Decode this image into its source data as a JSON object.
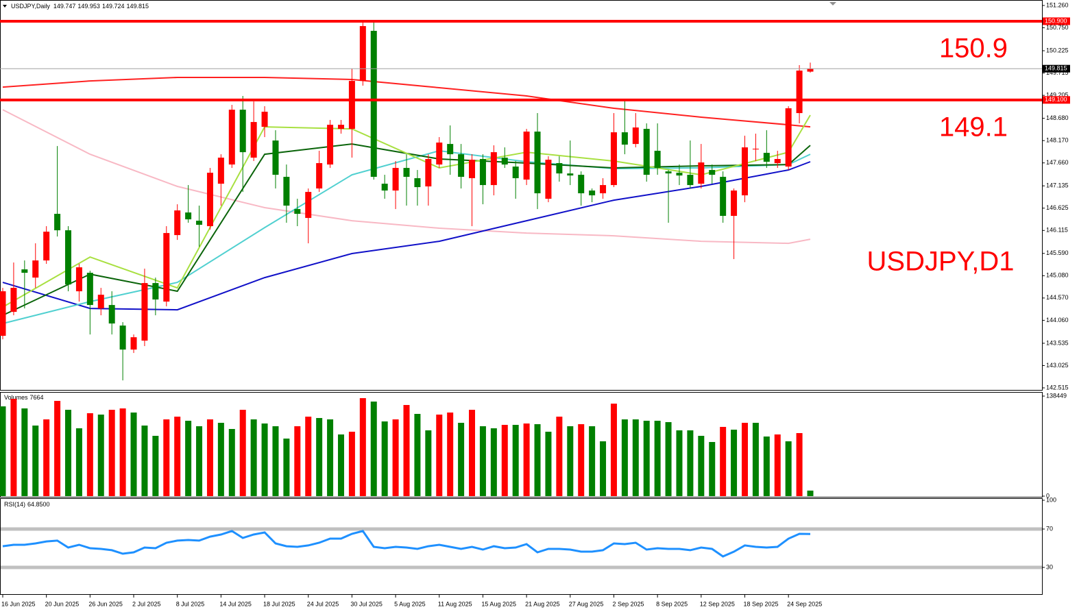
{
  "chart_data": [
    {
      "type": "candlestick",
      "title": "USDJPY,Daily",
      "categories": [
        "16 Jun 2025",
        null,
        null,
        null,
        "20 Jun 2025",
        null,
        null,
        null,
        "26 Jun 2025",
        null,
        null,
        null,
        "2 Jul 2025",
        null,
        null,
        null,
        "8 Jul 2025",
        null,
        null,
        null,
        "14 Jul 2025",
        null,
        null,
        null,
        "18 Jul 2025",
        null,
        null,
        null,
        "24 Jul 2025",
        null,
        null,
        null,
        "30 Jul 2025",
        null,
        null,
        null,
        "5 Aug 2025",
        null,
        null,
        null,
        "11 Aug 2025",
        null,
        null,
        null,
        "15 Aug 2025",
        null,
        null,
        null,
        "21 Aug 2025",
        null,
        null,
        null,
        "27 Aug 2025",
        null,
        null,
        null,
        "2 Sep 2025",
        null,
        null,
        null,
        "8 Sep 2025",
        null,
        null,
        null,
        "12 Sep 2025",
        null,
        null,
        null,
        "18 Sep 2025",
        null,
        null,
        null,
        "24 Sep 2025",
        null,
        null
      ],
      "open": [
        143.705,
        144.253,
        145.225,
        145.037,
        145.429,
        146.495,
        146.119,
        144.724,
        145.147,
        144.332,
        144.41,
        143.94,
        143.391,
        143.595,
        144.912,
        144.488,
        146.009,
        146.526,
        146.338,
        146.213,
        147.184,
        147.623,
        148.877,
        147.78,
        148.485,
        148.172,
        147.341,
        146.604,
        146.401,
        147.075,
        147.623,
        148.438,
        148.438,
        149.535,
        150.68,
        147.184,
        147.028,
        147.545,
        147.31,
        147.122,
        147.623,
        148.093,
        147.858,
        147.31,
        147.749,
        147.153,
        147.78,
        147.576,
        147.278,
        148.376,
        146.84,
        147.655,
        147.419,
        147.388,
        147.028,
        146.965,
        147.153,
        148.36,
        148.093,
        148.438,
        147.937,
        147.466,
        147.435,
        147.388,
        147.184,
        147.498,
        147.341,
        146.448,
        146.918,
        147.968,
        147.89,
        147.655,
        147.576,
        148.799,
        149.747
      ],
      "high": [
        144.802,
        145.382,
        145.429,
        145.821,
        146.213,
        148.046,
        146.213,
        145.351,
        145.194,
        144.802,
        144.724,
        144.018,
        143.736,
        145.241,
        145.037,
        146.213,
        146.714,
        147.153,
        146.683,
        147.545,
        147.858,
        148.987,
        149.191,
        149.065,
        148.956,
        148.407,
        147.623,
        146.84,
        147.075,
        147.937,
        148.642,
        148.642,
        149.818,
        150.868,
        150.868,
        147.388,
        147.702,
        147.858,
        147.498,
        147.858,
        148.25,
        148.517,
        148.093,
        147.858,
        147.858,
        148.062,
        148.015,
        147.702,
        148.438,
        148.799,
        147.811,
        147.811,
        148.172,
        147.466,
        147.075,
        147.31,
        148.799,
        149.112,
        148.799,
        148.564,
        148.564,
        147.498,
        147.623,
        148.172,
        148.093,
        147.623,
        147.466,
        147.075,
        148.282,
        148.329,
        148.407,
        147.937,
        148.956,
        149.896,
        149.953
      ],
      "low": [
        143.626,
        144.175,
        144.332,
        144.802,
        145.351,
        145.977,
        144.724,
        144.488,
        143.736,
        144.175,
        143.736,
        142.686,
        143.313,
        143.47,
        144.175,
        144.379,
        145.899,
        146.291,
        145.742,
        146.134,
        146.683,
        147.545,
        146.996,
        147.702,
        148.25,
        147.075,
        146.291,
        146.213,
        145.821,
        146.996,
        147.545,
        148.329,
        147.78,
        149.426,
        147.278,
        146.84,
        146.604,
        146.683,
        146.683,
        146.683,
        147.545,
        147.388,
        147.075,
        146.213,
        146.714,
        146.918,
        147.545,
        146.84,
        147.153,
        146.604,
        146.761,
        147.231,
        147.153,
        146.683,
        146.761,
        146.84,
        147.106,
        147.858,
        148.015,
        147.231,
        147.388,
        146.291,
        147.153,
        147.075,
        147.075,
        147.184,
        146.291,
        145.46,
        146.761,
        147.702,
        147.545,
        147.545,
        147.498,
        148.564,
        149.724
      ],
      "close": [
        144.724,
        144.802,
        145.147,
        145.429,
        146.087,
        146.119,
        144.88,
        145.272,
        144.41,
        144.645,
        143.987,
        143.391,
        143.673,
        144.912,
        144.536,
        146.056,
        146.573,
        146.369,
        146.244,
        147.435,
        147.78,
        148.877,
        147.905,
        148.595,
        148.83,
        147.388,
        146.683,
        146.495,
        146.996,
        147.655,
        148.532,
        148.532,
        149.535,
        150.789,
        147.341,
        147.028,
        147.545,
        147.341,
        147.106,
        147.749,
        148.125,
        147.858,
        147.341,
        147.733,
        147.153,
        147.905,
        147.623,
        147.31,
        148.376,
        146.965,
        147.733,
        147.419,
        147.372,
        146.965,
        146.918,
        147.153,
        148.36,
        148.078,
        148.47,
        147.388,
        147.545,
        147.419,
        147.372,
        147.153,
        147.67,
        147.388,
        146.448,
        147.028,
        148.015,
        147.984,
        147.686,
        147.749,
        148.909,
        149.771,
        149.815
      ],
      "up_color": "#ff0000",
      "down_color": "#008000",
      "ylim": [
        142.515,
        151.26
      ],
      "yticks": [
        {
          "value": 151.26,
          "label": "151.260"
        },
        {
          "value": 150.75,
          "label": "150.750"
        },
        150.225,
        149.715,
        149.205,
        {
          "value": 148.68,
          "label": "148.680"
        },
        {
          "value": 148.17,
          "label": "148.170"
        },
        {
          "value": 147.66,
          "label": "147.660"
        },
        147.135,
        146.625,
        146.115,
        {
          "value": 145.59,
          "label": "145.590"
        },
        {
          "value": 145.08,
          "label": "145.080"
        },
        {
          "value": 144.57,
          "label": "144.570"
        },
        {
          "value": 144.06,
          "label": "144.060"
        },
        143.535,
        143.025,
        142.515
      ],
      "lines": [
        {
          "color": "#ff2020",
          "x": [
            0,
            8,
            16,
            24,
            32,
            40,
            48,
            56,
            64,
            72,
            74
          ],
          "values": [
            149.394,
            149.535,
            149.614,
            149.614,
            149.567,
            149.379,
            149.191,
            148.909,
            148.705,
            148.532,
            148.485
          ]
        },
        {
          "color": "#f8b8c4",
          "x": [
            0,
            8,
            16,
            24,
            32,
            40,
            48,
            56,
            64,
            72,
            74
          ],
          "values": [
            148.877,
            147.858,
            147.122,
            146.636,
            146.338,
            146.166,
            146.056,
            145.993,
            145.868,
            145.821,
            145.915
          ]
        },
        {
          "color": "#1010c8",
          "x": [
            0,
            8,
            16,
            24,
            32,
            40,
            48,
            56,
            64,
            72,
            74
          ],
          "values": [
            144.927,
            144.332,
            144.3,
            145.037,
            145.586,
            145.868,
            146.338,
            146.808,
            147.122,
            147.498,
            147.686
          ]
        },
        {
          "color": "#50d0d0",
          "x": [
            0,
            8,
            16,
            24,
            32,
            40,
            48,
            56,
            64,
            72,
            74
          ],
          "values": [
            143.987,
            144.488,
            144.927,
            146.181,
            147.388,
            147.937,
            147.686,
            147.529,
            147.545,
            147.623,
            147.858
          ]
        },
        {
          "color": "#0a640a",
          "x": [
            0,
            8,
            16,
            24,
            32,
            40,
            48,
            56,
            64,
            72,
            74
          ],
          "values": [
            144.175,
            145.115,
            144.724,
            147.858,
            148.093,
            147.749,
            147.655,
            147.545,
            147.592,
            147.623,
            148.062
          ]
        },
        {
          "color": "#a8e040",
          "x": [
            0,
            8,
            16,
            24,
            32,
            40,
            48,
            56,
            64,
            72,
            74
          ],
          "values": [
            144.363,
            145.507,
            144.802,
            148.485,
            148.438,
            147.545,
            147.905,
            147.702,
            147.388,
            147.905,
            148.752
          ]
        }
      ],
      "levels": [
        {
          "value": 150.9,
          "label": "150.900"
        },
        {
          "value": 149.1,
          "label": "149.100"
        }
      ],
      "level_color": "#ff0000",
      "annotation": "USDJPY,D1"
    },
    {
      "type": "bar",
      "title": "Volumes",
      "values": [
        124227,
        134659,
        121382,
        97675,
        106210,
        131814,
        119486,
        93882,
        114744,
        112848,
        119486,
        121382,
        115693,
        97675,
        83450,
        106210,
        110003,
        104313,
        96727,
        106210,
        101468,
        92933,
        119486,
        106210,
        100520,
        96727,
        79657,
        96727,
        110003,
        108106,
        106210,
        85347,
        89140,
        135607,
        130865,
        103375,
        106210,
        126124,
        113796,
        91037,
        112848,
        115693,
        101468,
        119486,
        96727,
        93882,
        98623,
        98623,
        100520,
        99572,
        89140,
        110003,
        96727,
        99572,
        96727,
        75864,
        128021,
        106210,
        106210,
        104313,
        104313,
        102416,
        91037,
        91037,
        83450,
        74916,
        95798,
        91985,
        101468,
        101468,
        82502,
        85347,
        75864,
        87244,
        7664
      ],
      "up_color": "#ff0000",
      "down_color": "#008000",
      "ylim": [
        0,
        138449
      ],
      "yticks": [
        0,
        138449
      ]
    },
    {
      "type": "line",
      "title": "RSI(14)",
      "values": [
        52.1,
        53.6,
        53.6,
        55.0,
        57.1,
        57.9,
        50.7,
        53.6,
        50.0,
        49.3,
        47.9,
        44.3,
        45.7,
        50.7,
        50.0,
        55.7,
        57.9,
        58.6,
        57.9,
        62.1,
        64.3,
        67.9,
        60.7,
        64.3,
        66.4,
        55.0,
        52.1,
        51.4,
        52.9,
        55.7,
        60.0,
        60.0,
        65.0,
        67.9,
        51.4,
        50.0,
        51.4,
        50.7,
        49.3,
        52.1,
        53.6,
        51.4,
        49.3,
        51.4,
        48.6,
        52.1,
        50.0,
        50.7,
        54.3,
        45.7,
        49.3,
        49.3,
        48.6,
        46.4,
        46.4,
        47.9,
        55.0,
        54.3,
        55.7,
        48.6,
        50.0,
        49.3,
        49.3,
        47.9,
        50.7,
        49.3,
        41.4,
        46.4,
        52.9,
        51.4,
        50.7,
        51.4,
        60.0,
        65.0,
        64.85
      ],
      "current": {
        "value": 64.85,
        "label": "64.8500"
      },
      "color": "#1e90ff",
      "ylim": [
        0,
        100
      ],
      "yticks": [
        30,
        70,
        100
      ],
      "levels": [
        30,
        70
      ],
      "level_color": "#c0c0c0"
    }
  ]
}
